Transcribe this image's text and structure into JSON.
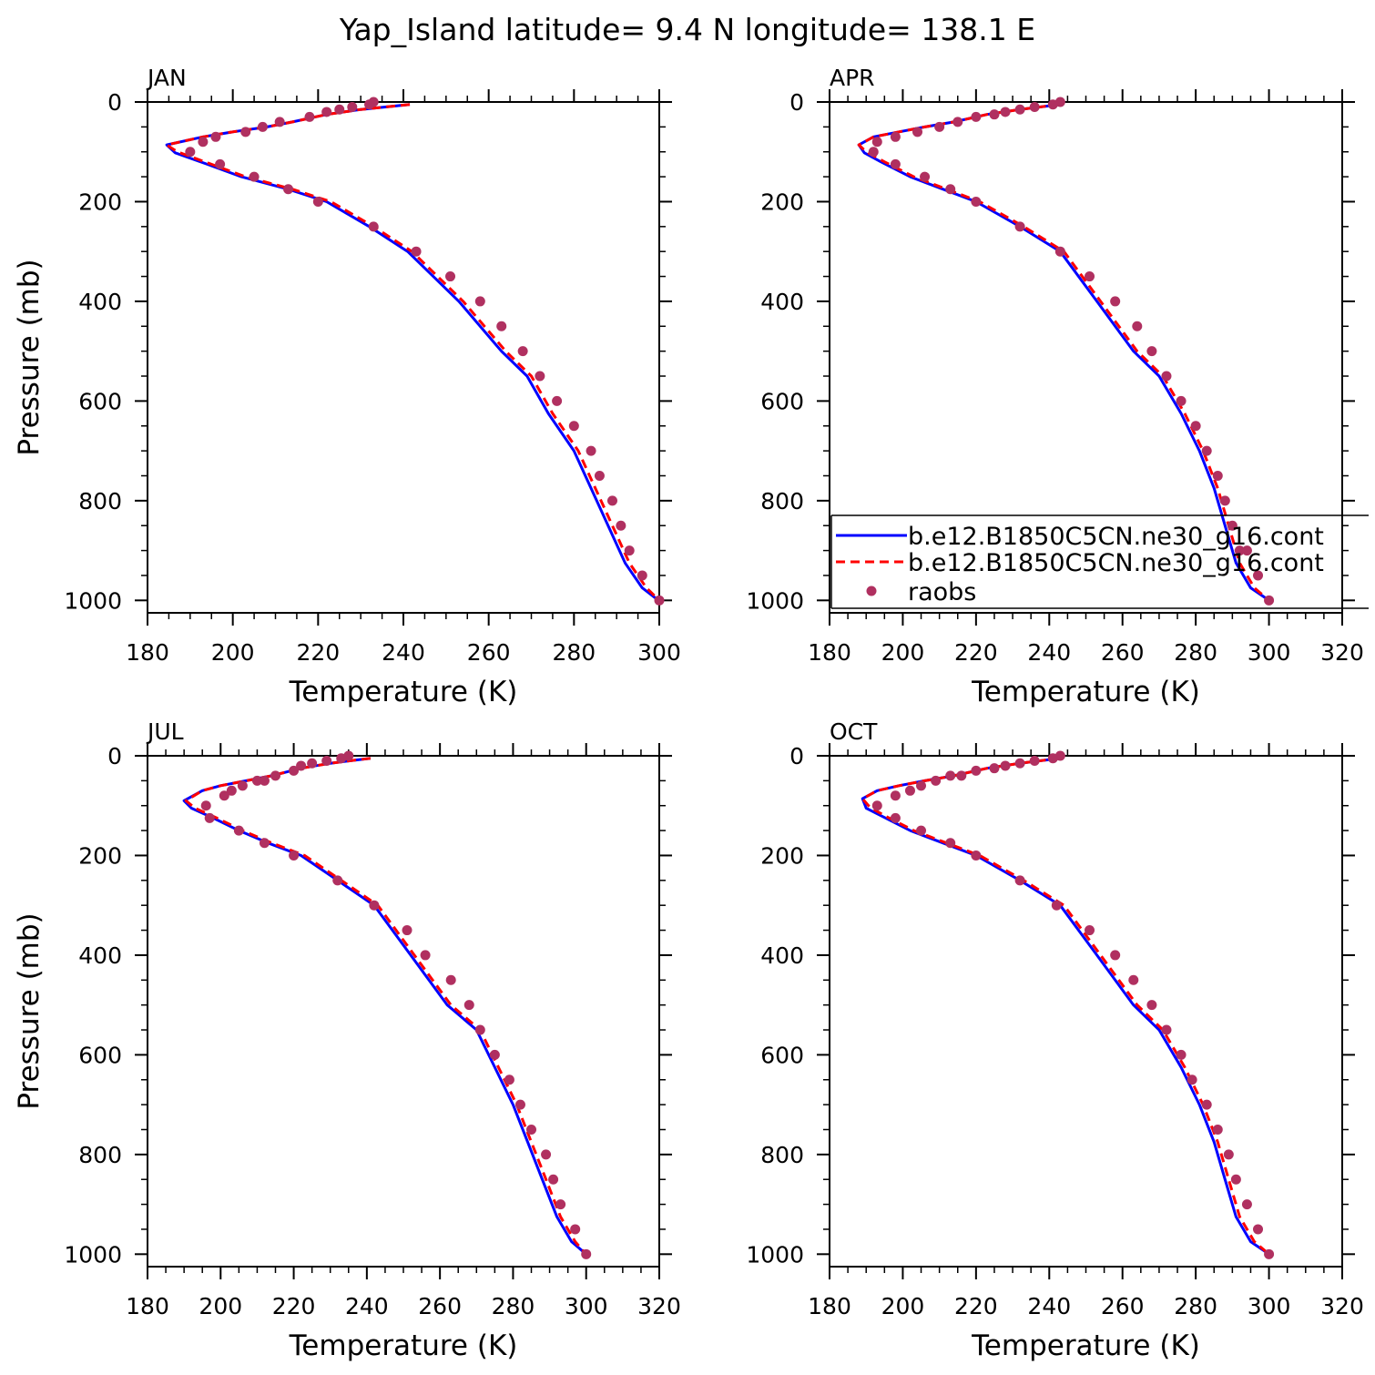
{
  "title": "Yap_Island  latitude= 9.4 N longitude= 138.1 E",
  "chart_data": [
    {
      "type": "line",
      "panel": "JAN",
      "xlabel": "Temperature (K)",
      "ylabel": "Pressure (mb)",
      "xlim": [
        180,
        300
      ],
      "ylim": [
        1025,
        0
      ],
      "y_inverted": true,
      "xticks": [
        180,
        200,
        220,
        240,
        260,
        280,
        300
      ],
      "yticks": [
        0,
        200,
        400,
        600,
        800,
        1000
      ],
      "series": [
        {
          "color": "#0000ff",
          "dash": "solid",
          "x": [
            241.5,
            230,
            222,
            214,
            208,
            200,
            193,
            184.5,
            186.5,
            194,
            202,
            213,
            222,
            232,
            241,
            253,
            263,
            269,
            274,
            280,
            284,
            288,
            292,
            296,
            299.8
          ],
          "y": [
            5,
            15,
            25,
            40,
            50,
            60,
            70,
            86,
            102,
            125,
            150,
            175,
            200,
            250,
            300,
            400,
            500,
            550,
            625,
            700,
            775,
            850,
            925,
            975,
            1000
          ]
        },
        {
          "color": "#ff0000",
          "dash": "dashed",
          "x": [
            241.5,
            230,
            222,
            214,
            208,
            200,
            193,
            184.5,
            187,
            195,
            203,
            214,
            223,
            233,
            242,
            254,
            264,
            270,
            275,
            281,
            285,
            289,
            293,
            297,
            300
          ],
          "y": [
            5,
            15,
            25,
            40,
            50,
            60,
            70,
            86,
            100,
            125,
            150,
            175,
            200,
            250,
            300,
            400,
            500,
            550,
            625,
            700,
            775,
            850,
            925,
            975,
            1000
          ]
        },
        {
          "color": "#b03060",
          "dash": "markers",
          "x": [
            233,
            232,
            228,
            225,
            222,
            218,
            211,
            207,
            203,
            196,
            193,
            190,
            197,
            205,
            213,
            220,
            233,
            243,
            251,
            258,
            263,
            268,
            272,
            276,
            280,
            284,
            286,
            289,
            291,
            293,
            296,
            300
          ],
          "y": [
            0,
            5,
            10,
            15,
            20,
            30,
            40,
            50,
            60,
            70,
            80,
            100,
            125,
            150,
            175,
            200,
            250,
            300,
            350,
            400,
            450,
            500,
            550,
            600,
            650,
            700,
            750,
            800,
            850,
            900,
            950,
            1000
          ]
        }
      ]
    },
    {
      "type": "line",
      "panel": "APR",
      "xlabel": "Temperature (K)",
      "ylabel": "",
      "xlim": [
        180,
        320
      ],
      "ylim": [
        1025,
        0
      ],
      "y_inverted": true,
      "xticks": [
        180,
        200,
        220,
        240,
        260,
        280,
        300,
        320
      ],
      "yticks": [
        0,
        200,
        400,
        600,
        800,
        1000
      ],
      "series": [
        {
          "name": "b.e12.B1850C5CN.ne30_g16.cont",
          "color": "#0000ff",
          "dash": "solid",
          "x": [
            243,
            232,
            223,
            214,
            206,
            199,
            192,
            188,
            189.5,
            194,
            202,
            211,
            220,
            232,
            243,
            253,
            263,
            270,
            276,
            281,
            285,
            288,
            291,
            295,
            300
          ],
          "y": [
            5,
            15,
            25,
            40,
            50,
            60,
            70,
            86,
            102,
            120,
            150,
            175,
            200,
            250,
            300,
            400,
            500,
            550,
            625,
            700,
            775,
            850,
            925,
            975,
            1000
          ]
        },
        {
          "name": "b.e12.B1850C5CN.ne30_g16.cont",
          "color": "#ff0000",
          "dash": "dashed",
          "x": [
            243,
            232,
            223,
            214,
            206,
            199,
            192,
            188,
            190,
            195,
            203,
            212,
            221,
            233,
            244,
            254,
            264,
            271,
            277,
            282,
            286,
            289,
            292,
            296,
            300
          ],
          "y": [
            5,
            15,
            25,
            40,
            50,
            60,
            70,
            86,
            100,
            120,
            150,
            175,
            200,
            250,
            300,
            400,
            500,
            550,
            625,
            700,
            775,
            850,
            925,
            975,
            1000
          ]
        },
        {
          "name": "raobs",
          "color": "#b03060",
          "dash": "markers",
          "x": [
            243,
            241,
            236,
            232,
            228,
            225,
            220,
            215,
            210,
            204,
            198,
            193,
            192,
            198,
            206,
            213,
            220,
            232,
            243,
            251,
            258,
            264,
            268,
            272,
            276,
            280,
            283,
            286,
            288,
            290,
            292,
            294,
            297,
            300
          ],
          "y": [
            0,
            5,
            10,
            15,
            20,
            25,
            30,
            40,
            50,
            60,
            70,
            80,
            100,
            125,
            150,
            175,
            200,
            250,
            300,
            350,
            400,
            450,
            500,
            550,
            600,
            650,
            700,
            750,
            800,
            850,
            900,
            900,
            950,
            1000
          ]
        }
      ],
      "legend_position": "bottom-right"
    },
    {
      "type": "line",
      "panel": "JUL",
      "xlabel": "Temperature (K)",
      "ylabel": "Pressure (mb)",
      "xlim": [
        180,
        320
      ],
      "ylim": [
        1025,
        0
      ],
      "y_inverted": true,
      "xticks": [
        180,
        200,
        220,
        240,
        260,
        280,
        300,
        320
      ],
      "yticks": [
        0,
        200,
        400,
        600,
        800,
        1000
      ],
      "series": [
        {
          "color": "#0000ff",
          "dash": "solid",
          "x": [
            241,
            230,
            222,
            214,
            207,
            200,
            195,
            190,
            192,
            198,
            205,
            213,
            222,
            232,
            242,
            252,
            262,
            270,
            275,
            280,
            284,
            288,
            292,
            296,
            300
          ],
          "y": [
            5,
            15,
            25,
            40,
            50,
            60,
            70,
            90,
            105,
            125,
            150,
            175,
            200,
            250,
            300,
            400,
            500,
            550,
            625,
            700,
            775,
            850,
            925,
            975,
            1000
          ]
        },
        {
          "color": "#ff0000",
          "dash": "dashed",
          "x": [
            241,
            230,
            222,
            214,
            207,
            200,
            195,
            190.5,
            193,
            199,
            206,
            214,
            223,
            233,
            243,
            253,
            263,
            271,
            276,
            281,
            285,
            289,
            293,
            297,
            300
          ],
          "y": [
            5,
            15,
            25,
            40,
            50,
            60,
            70,
            90,
            105,
            125,
            150,
            175,
            200,
            250,
            300,
            400,
            500,
            550,
            625,
            700,
            775,
            850,
            925,
            975,
            1000
          ]
        },
        {
          "color": "#b03060",
          "dash": "markers",
          "x": [
            235,
            233,
            229,
            225,
            222,
            220,
            215,
            212,
            210,
            206,
            203,
            201,
            196,
            197,
            205,
            212,
            220,
            232,
            242,
            251,
            256,
            263,
            268,
            271,
            275,
            279,
            282,
            285,
            289,
            291,
            293,
            297,
            300
          ],
          "y": [
            0,
            5,
            10,
            15,
            20,
            30,
            40,
            50,
            50,
            60,
            70,
            80,
            100,
            125,
            150,
            175,
            200,
            250,
            300,
            350,
            400,
            450,
            500,
            550,
            600,
            650,
            700,
            750,
            800,
            850,
            900,
            950,
            1000
          ]
        }
      ]
    },
    {
      "type": "line",
      "panel": "OCT",
      "xlabel": "Temperature (K)",
      "ylabel": "",
      "xlim": [
        180,
        320
      ],
      "ylim": [
        1025,
        0
      ],
      "y_inverted": true,
      "xticks": [
        180,
        200,
        220,
        240,
        260,
        280,
        300,
        320
      ],
      "yticks": [
        0,
        200,
        400,
        600,
        800,
        1000
      ],
      "series": [
        {
          "color": "#0000ff",
          "dash": "solid",
          "x": [
            243,
            232,
            223,
            214,
            206,
            199,
            193,
            189,
            190,
            194,
            202,
            211,
            220,
            232,
            243,
            253,
            263,
            270,
            276,
            281,
            285,
            288,
            291,
            295,
            300
          ],
          "y": [
            5,
            15,
            25,
            40,
            50,
            60,
            70,
            86,
            105,
            120,
            150,
            175,
            200,
            250,
            300,
            400,
            500,
            550,
            625,
            700,
            775,
            850,
            925,
            975,
            1000
          ]
        },
        {
          "color": "#ff0000",
          "dash": "dashed",
          "x": [
            243,
            232,
            223,
            214,
            206,
            199,
            193,
            189,
            191,
            195,
            203,
            212,
            221,
            233,
            244,
            254,
            264,
            271,
            277,
            282,
            286,
            289,
            292,
            296,
            300
          ],
          "y": [
            5,
            15,
            25,
            40,
            50,
            60,
            70,
            86,
            103,
            120,
            150,
            175,
            200,
            250,
            300,
            400,
            500,
            550,
            625,
            700,
            775,
            850,
            925,
            975,
            1000
          ]
        },
        {
          "color": "#b03060",
          "dash": "markers",
          "x": [
            243,
            241,
            236,
            232,
            228,
            225,
            220,
            216,
            213,
            209,
            205,
            202,
            198,
            193,
            198,
            205,
            213,
            220,
            232,
            242,
            251,
            258,
            263,
            268,
            272,
            276,
            279,
            283,
            286,
            289,
            291,
            294,
            297,
            300
          ],
          "y": [
            0,
            5,
            10,
            15,
            20,
            25,
            30,
            40,
            40,
            50,
            60,
            70,
            80,
            100,
            125,
            150,
            175,
            200,
            250,
            300,
            350,
            400,
            450,
            500,
            550,
            600,
            650,
            700,
            750,
            800,
            850,
            900,
            950,
            1000
          ]
        }
      ]
    }
  ]
}
